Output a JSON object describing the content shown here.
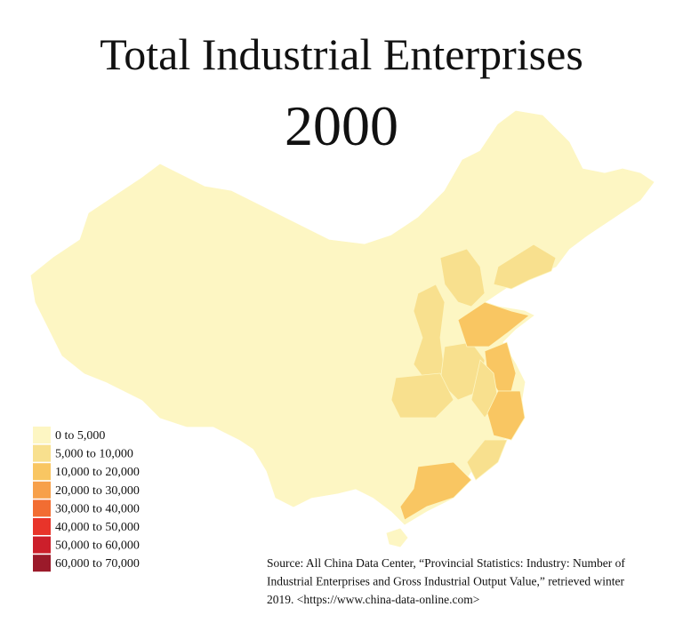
{
  "header": {
    "title": "Total Industrial Enterprises",
    "subtitle": "2000"
  },
  "legend": [
    {
      "label": "0 to 5,000",
      "color": "#fdf6c3"
    },
    {
      "label": "5,000 to 10,000",
      "color": "#f8e08e"
    },
    {
      "label": "10,000 to 20,000",
      "color": "#f9c662"
    },
    {
      "label": "20,000 to 30,000",
      "color": "#f7a04a"
    },
    {
      "label": "30,000 to 40,000",
      "color": "#f26d32"
    },
    {
      "label": "40,000 to 50,000",
      "color": "#e8342a"
    },
    {
      "label": "50,000 to 60,000",
      "color": "#cc1f2b"
    },
    {
      "label": "60,000 to 70,000",
      "color": "#9b1a2a"
    }
  ],
  "source": [
    "Source: All China Data Center, “Provincial Statistics: Industry: Number of",
    "Industrial Enterprises and Gross Industrial Output Value,” retrieved winter",
    "2019. <https://www.china-data-online.com>"
  ]
}
